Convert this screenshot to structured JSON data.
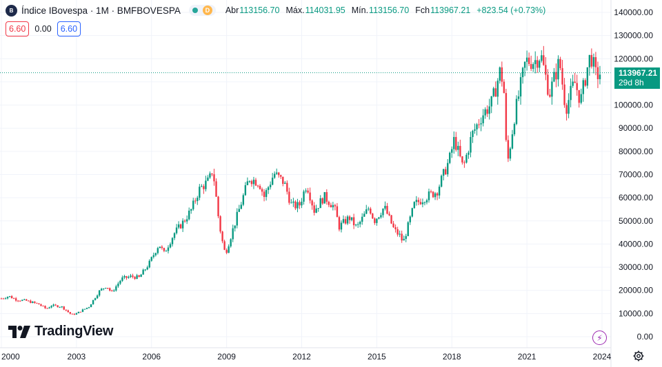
{
  "header": {
    "symbol_badge": "B",
    "title": "Índice IBovespa · 1M · BMFBOVESPA",
    "status_letter": "D",
    "ohlc": {
      "open_label": "Abr",
      "open_value": "113156.70",
      "high_label": "Máx.",
      "high_value": "114031.95",
      "low_label": "Mín.",
      "low_value": "113156.70",
      "close_label": "Fch",
      "close_value": "113967.21",
      "change": "+823.54 (+0.73%)"
    }
  },
  "indicator": {
    "left": "6.60",
    "middle": "0.00",
    "right": "6.60"
  },
  "price_tag": {
    "price": "113967.21",
    "countdown": "29d 8h"
  },
  "branding": {
    "logo_text": "TradingView"
  },
  "colors": {
    "up": "#089981",
    "down": "#f23645",
    "grid": "#f0f3fa",
    "last_line": "#089981"
  },
  "icons": [
    "lightning-icon",
    "gear-icon",
    "tradingview-logo-icon"
  ],
  "chart_data": {
    "type": "candlestick",
    "title": "Índice IBovespa · 1M · BMFBOVESPA",
    "interval": "1M",
    "y_axis": {
      "position": "right",
      "ylim": [
        0,
        140000
      ],
      "ticks": [
        "140000.00",
        "130000.00",
        "120000.00",
        "110000.00",
        "100000.00",
        "90000.00",
        "80000.00",
        "70000.00",
        "60000.00",
        "50000.00",
        "40000.00",
        "30000.00",
        "20000.00",
        "10000.00",
        "0.00"
      ]
    },
    "x_axis": {
      "ticks": [
        "2000",
        "2003",
        "2006",
        "2009",
        "2012",
        "2015",
        "2018",
        "2021",
        "2024"
      ],
      "range": [
        2000.0,
        2024.0
      ]
    },
    "grid": true,
    "last_price": 113967.21,
    "keypoints": [
      [
        2000.0,
        16500
      ],
      [
        2000.3,
        17500
      ],
      [
        2000.6,
        16000
      ],
      [
        2001.0,
        15500
      ],
      [
        2001.5,
        14000
      ],
      [
        2001.8,
        12000
      ],
      [
        2002.0,
        13500
      ],
      [
        2002.4,
        13000
      ],
      [
        2002.8,
        9500
      ],
      [
        2003.0,
        10000
      ],
      [
        2003.5,
        13000
      ],
      [
        2003.9,
        19500
      ],
      [
        2004.2,
        22000
      ],
      [
        2004.4,
        19000
      ],
      [
        2004.8,
        25000
      ],
      [
        2005.2,
        26000
      ],
      [
        2005.5,
        25500
      ],
      [
        2005.9,
        31500
      ],
      [
        2006.3,
        40000
      ],
      [
        2006.5,
        36000
      ],
      [
        2006.9,
        44500
      ],
      [
        2007.3,
        50000
      ],
      [
        2007.6,
        55000
      ],
      [
        2007.9,
        63500
      ],
      [
        2008.3,
        67500
      ],
      [
        2008.45,
        72500
      ],
      [
        2008.7,
        49000
      ],
      [
        2008.9,
        37000
      ],
      [
        2009.0,
        37500
      ],
      [
        2009.4,
        51500
      ],
      [
        2009.9,
        68500
      ],
      [
        2010.3,
        66500
      ],
      [
        2010.5,
        60500
      ],
      [
        2010.9,
        70500
      ],
      [
        2011.3,
        66500
      ],
      [
        2011.6,
        56500
      ],
      [
        2011.9,
        56500
      ],
      [
        2012.2,
        66000
      ],
      [
        2012.5,
        54500
      ],
      [
        2012.9,
        60500
      ],
      [
        2013.3,
        56000
      ],
      [
        2013.5,
        47500
      ],
      [
        2013.9,
        51500
      ],
      [
        2014.2,
        47000
      ],
      [
        2014.7,
        56000
      ],
      [
        2014.9,
        50000
      ],
      [
        2015.3,
        56000
      ],
      [
        2015.7,
        46000
      ],
      [
        2015.95,
        43300
      ],
      [
        2016.05,
        40400
      ],
      [
        2016.5,
        57000
      ],
      [
        2016.9,
        60000
      ],
      [
        2017.4,
        62700
      ],
      [
        2017.9,
        76400
      ],
      [
        2018.1,
        85400
      ],
      [
        2018.45,
        72700
      ],
      [
        2018.8,
        87000
      ],
      [
        2019.2,
        95500
      ],
      [
        2019.6,
        101000
      ],
      [
        2019.95,
        115600
      ],
      [
        2020.1,
        104000
      ],
      [
        2020.2,
        73000
      ],
      [
        2020.5,
        95000
      ],
      [
        2020.95,
        119000
      ],
      [
        2021.3,
        118900
      ],
      [
        2021.55,
        121800
      ],
      [
        2021.9,
        104800
      ],
      [
        2022.3,
        119000
      ],
      [
        2022.55,
        98500
      ],
      [
        2022.9,
        110000
      ],
      [
        2023.15,
        101900
      ],
      [
        2023.45,
        118000
      ],
      [
        2023.55,
        121900
      ],
      [
        2023.75,
        113100
      ],
      [
        2023.85,
        113157
      ],
      [
        2023.95,
        113967
      ]
    ]
  }
}
